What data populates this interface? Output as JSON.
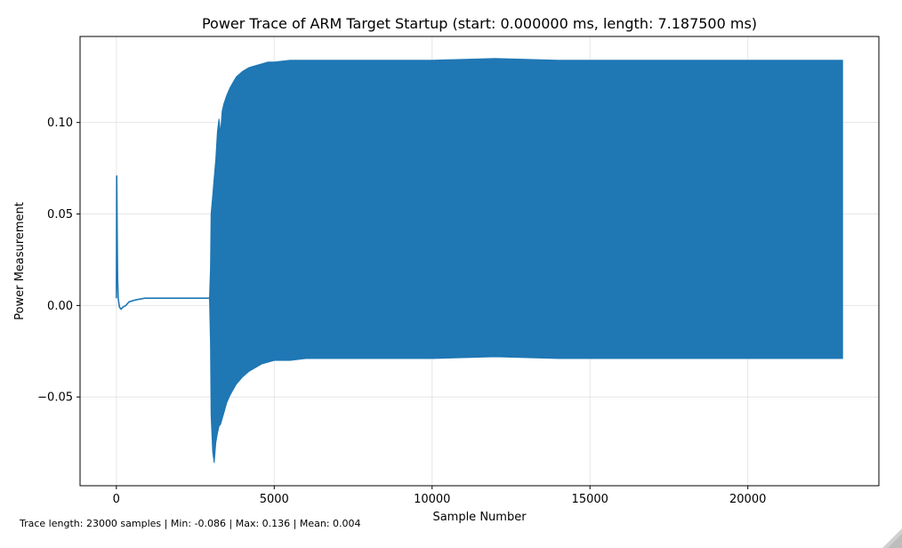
{
  "chart_data": {
    "type": "line",
    "title": "Power Trace of ARM Target Startup (start: 0.000000 ms, length: 7.187500 ms)",
    "xlabel": "Sample Number",
    "ylabel": "Power Measurement",
    "xlim": [
      -1150,
      24150
    ],
    "ylim": [
      -0.0985,
      0.147
    ],
    "xticks": [
      {
        "value": 0,
        "label": "0"
      },
      {
        "value": 5000,
        "label": "5000"
      },
      {
        "value": 10000,
        "label": "10000"
      },
      {
        "value": 15000,
        "label": "15000"
      },
      {
        "value": 20000,
        "label": "20000"
      }
    ],
    "yticks": [
      {
        "value": -0.05,
        "label": "−0.05"
      },
      {
        "value": 0.0,
        "label": "0.00"
      },
      {
        "value": 0.05,
        "label": "0.05"
      },
      {
        "value": 0.1,
        "label": "0.10"
      }
    ],
    "grid": true,
    "series_color": "#1f77b4",
    "series": [
      {
        "segments": [
          {
            "kind": "line",
            "x": [
              0,
              10,
              20,
              30,
              40,
              50,
              60,
              80,
              100,
              150,
              200,
              300,
              400,
              600,
              900,
              1200,
              1600,
              2000,
              2400,
              2800,
              2950
            ],
            "y": [
              0.004,
              0.071,
              0.055,
              0.03,
              0.015,
              0.008,
              0.004,
              0.001,
              -0.001,
              -0.002,
              -0.001,
              0.0,
              0.002,
              0.003,
              0.004,
              0.004,
              0.004,
              0.004,
              0.004,
              0.004,
              0.004
            ]
          },
          {
            "kind": "envelope",
            "x": [
              2950,
              2980,
              3000,
              3050,
              3100,
              3150,
              3200,
              3250,
              3300,
              3350,
              3400,
              3500,
              3600,
              3700,
              3800,
              4000,
              4200,
              4400,
              4600,
              4800,
              5000,
              5500,
              6000,
              7000,
              8000,
              10000,
              12000,
              14000,
              16000,
              18000,
              20000,
              22000,
              23000
            ],
            "upper": [
              0.004,
              0.02,
              0.05,
              0.06,
              0.07,
              0.08,
              0.095,
              0.102,
              0.094,
              0.106,
              0.11,
              0.115,
              0.119,
              0.122,
              0.125,
              0.128,
              0.13,
              0.131,
              0.132,
              0.133,
              0.133,
              0.134,
              0.134,
              0.134,
              0.134,
              0.134,
              0.135,
              0.134,
              0.134,
              0.134,
              0.134,
              0.134,
              0.134
            ],
            "lower": [
              0.004,
              -0.02,
              -0.06,
              -0.08,
              -0.086,
              -0.075,
              -0.07,
              -0.066,
              -0.065,
              -0.062,
              -0.059,
              -0.053,
              -0.049,
              -0.046,
              -0.043,
              -0.039,
              -0.036,
              -0.034,
              -0.032,
              -0.031,
              -0.03,
              -0.03,
              -0.029,
              -0.029,
              -0.029,
              -0.029,
              -0.028,
              -0.029,
              -0.029,
              -0.029,
              -0.029,
              -0.029,
              -0.029
            ]
          }
        ]
      }
    ]
  },
  "footer": {
    "stats": "Trace length: 23000 samples | Min: -0.086 | Max: 0.136 | Mean: 0.004"
  }
}
